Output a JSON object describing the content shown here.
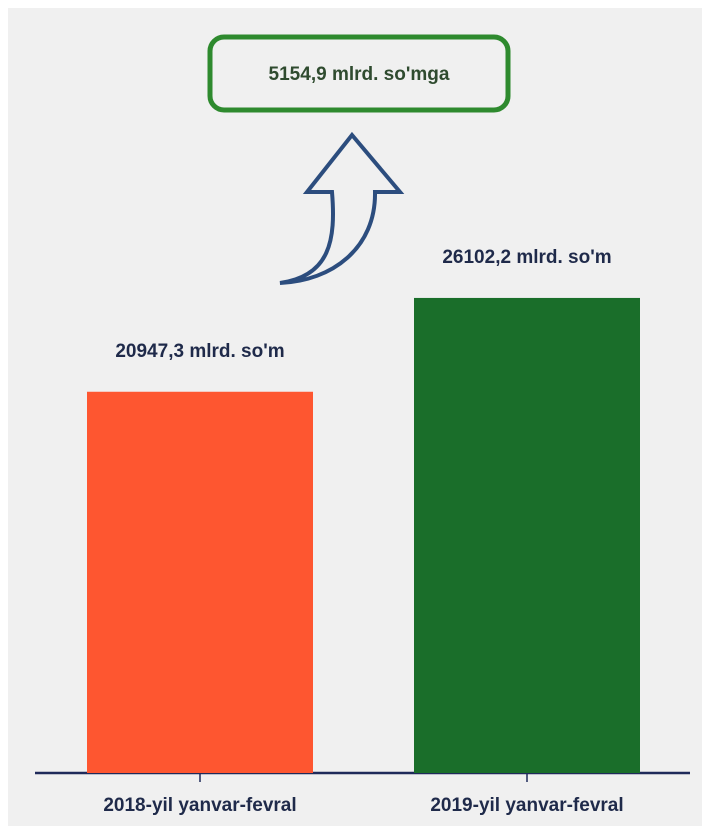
{
  "chart_data": {
    "type": "bar",
    "annotation": "5154,9 mlrd. so'mga",
    "categories": [
      "2018-yil yanvar-fevral",
      "2019-yil yanvar-fevral"
    ],
    "values": [
      20947.3,
      26102.2
    ],
    "value_labels": [
      "20947,3 mlrd. so'm",
      "26102,2 mlrd. so'm"
    ],
    "colors": [
      "#fe5630",
      "#1a6e2a"
    ],
    "ylim": [
      0,
      30000
    ]
  }
}
